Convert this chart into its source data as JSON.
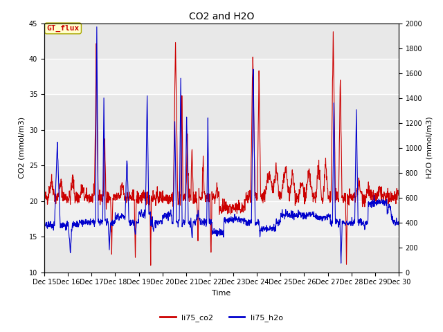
{
  "title": "CO2 and H2O",
  "xlabel": "Time",
  "ylabel_left": "CO2 (mmol/m3)",
  "ylabel_right": "H2O (mmol/m3)",
  "xlim_days": [
    15,
    30
  ],
  "ylim_left": [
    10,
    45
  ],
  "ylim_right": [
    0,
    2000
  ],
  "yticks_left": [
    10,
    15,
    20,
    25,
    30,
    35,
    40,
    45
  ],
  "yticks_right": [
    0,
    200,
    400,
    600,
    800,
    1000,
    1200,
    1400,
    1600,
    1800,
    2000
  ],
  "xtick_labels": [
    "Dec 15",
    "Dec 16",
    "Dec 17",
    "Dec 18",
    "Dec 19",
    "Dec 20",
    "Dec 21",
    "Dec 22",
    "Dec 23",
    "Dec 24",
    "Dec 25",
    "Dec 26",
    "Dec 27",
    "Dec 28",
    "Dec 29",
    "Dec 30"
  ],
  "color_co2": "#cc0000",
  "color_h2o": "#0000cc",
  "label_co2": "li75_co2",
  "label_h2o": "li75_h2o",
  "annotation_text": "GT_flux",
  "annotation_color": "#cc0000",
  "annotation_bg": "#ffffcc",
  "band_colors": [
    "#e8e8e8",
    "#f8f8f8"
  ],
  "background_color": "#ffffff",
  "title_fontsize": 10,
  "label_fontsize": 8,
  "tick_fontsize": 7
}
